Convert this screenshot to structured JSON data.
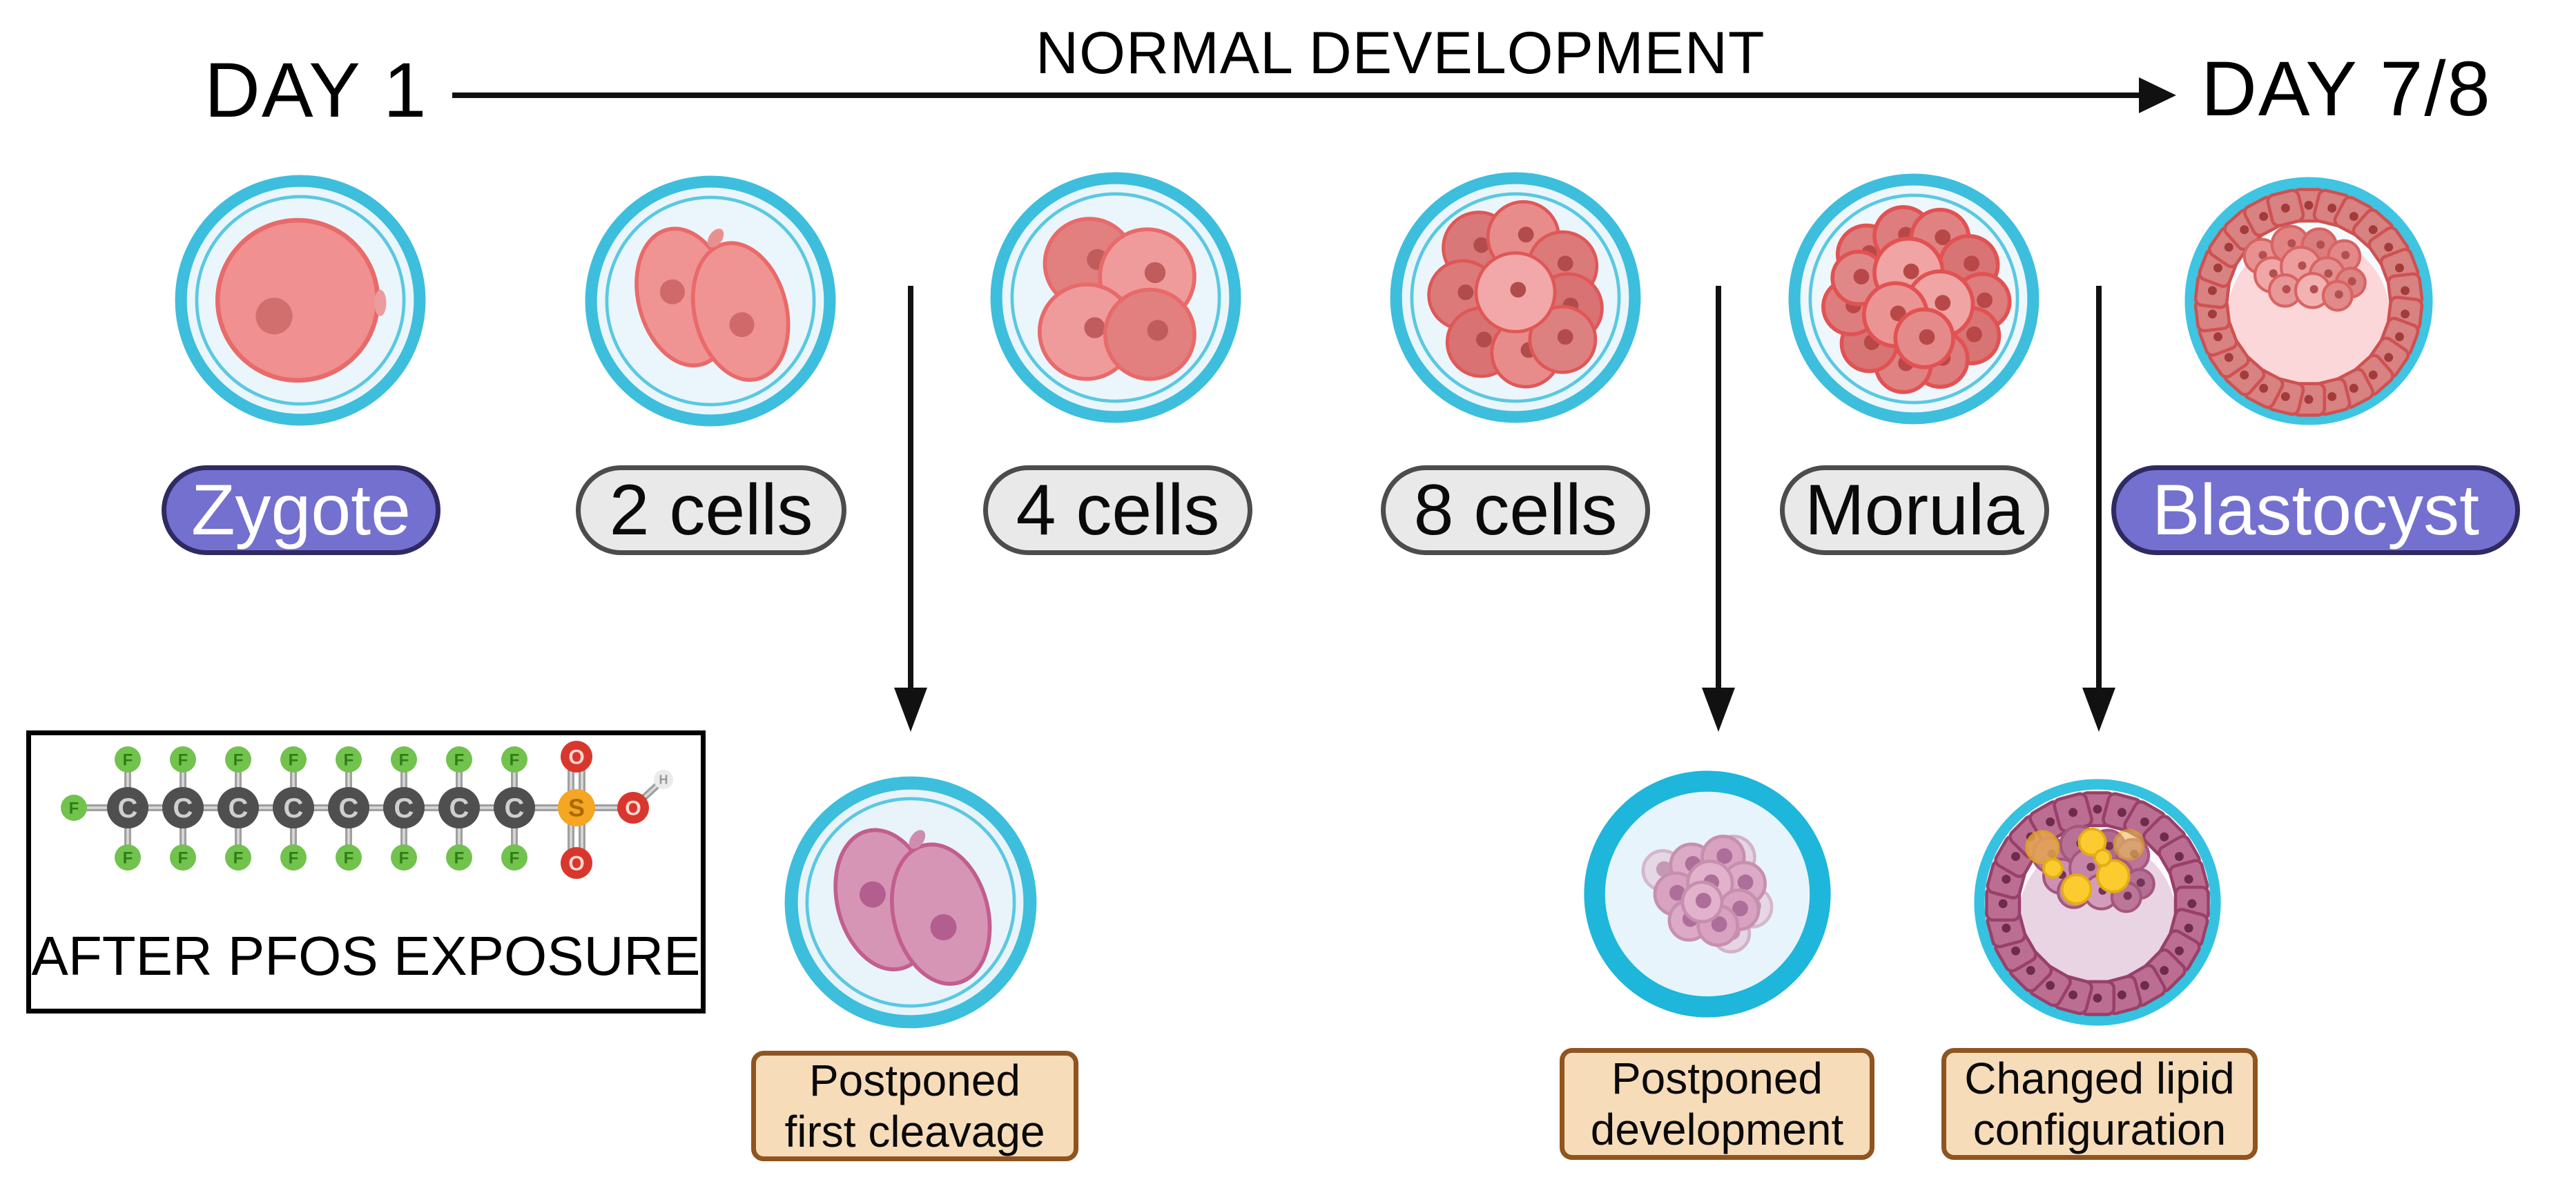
{
  "header": {
    "day_start": "DAY 1",
    "title": "NORMAL DEVELOPMENT",
    "day_end": "DAY 7/8"
  },
  "stages": [
    {
      "label": "Zygote",
      "style": "purple"
    },
    {
      "label": "2 cells",
      "style": "grey"
    },
    {
      "label": "4 cells",
      "style": "grey"
    },
    {
      "label": "8 cells",
      "style": "grey"
    },
    {
      "label": "Morula",
      "style": "grey"
    },
    {
      "label": "Blastocyst",
      "style": "purple"
    }
  ],
  "pfos_box": {
    "caption": "AFTER PFOS EXPOSURE",
    "molecule": {
      "carbon_label": "C",
      "fluorine_label": "F",
      "sulfur_label": "S",
      "oxygen_label": "O",
      "hydrogen_label": "H",
      "carbon_count": 8,
      "fluorine_count": 17,
      "oxygen_count": 3,
      "sulfur_count": 1,
      "hydrogen_count": 1
    }
  },
  "effects": [
    {
      "line1": "Postponed",
      "line2": "first cleavage"
    },
    {
      "line1": "Postponed",
      "line2": "development"
    },
    {
      "line1": "Changed lipid",
      "line2": "configuration"
    }
  ],
  "colors": {
    "zona_ring": "#3dbedd",
    "zona_interior": "#eaf6fb",
    "cell_pink": "#f09090",
    "cell_pink_border": "#e96a6a",
    "cell_red": "#dd7d7d",
    "cell_mauve": "#d795b5",
    "cell_mauve_border": "#c25e8e",
    "lipid_yellow": "#fccb2f",
    "pill_purple": "#7370cf",
    "pill_purple_border": "#2f2a62",
    "pill_grey": "#e9e9e9",
    "pill_grey_border": "#4c4c4c",
    "effect_fill": "#f7dcba",
    "effect_border": "#8f5420",
    "atom_carbon": "#4f4f4f",
    "atom_fluorine": "#72c24e",
    "atom_sulfur": "#f5a623",
    "atom_oxygen": "#d8372e",
    "atom_hydrogen": "#ebebeb",
    "arrow": "#111111",
    "background": "#ffffff"
  }
}
